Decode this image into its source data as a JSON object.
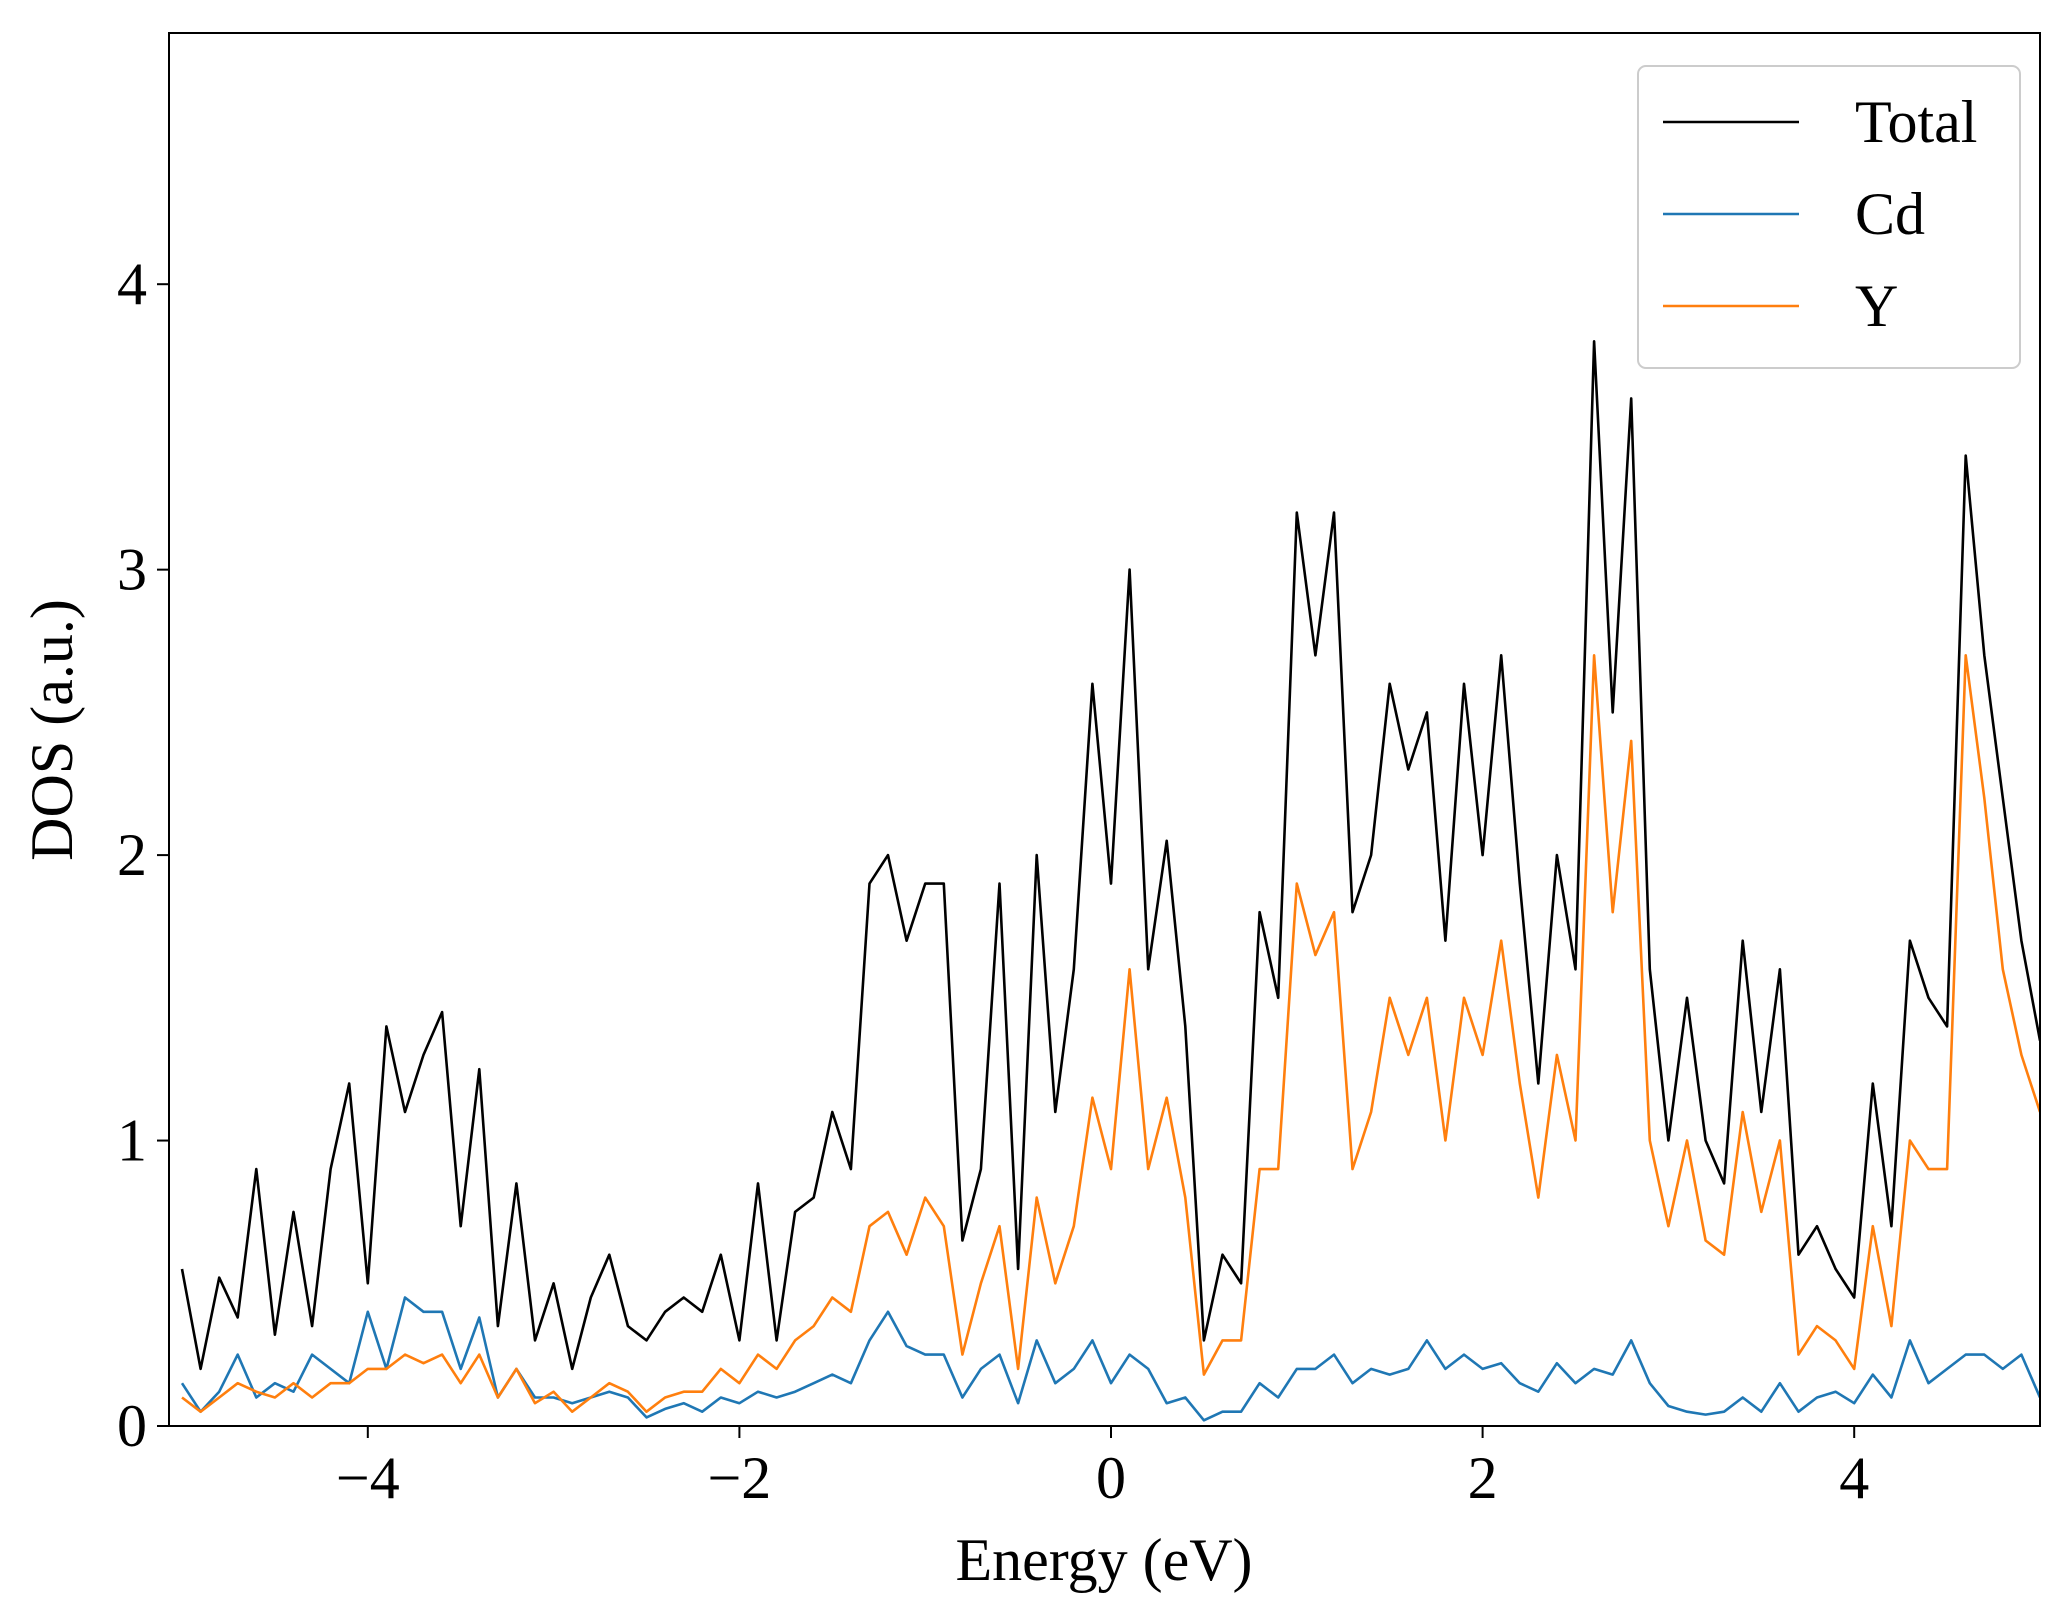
{
  "chart_data": {
    "type": "line",
    "xlabel": "Energy (eV)",
    "ylabel": "DOS (a.u.)",
    "xlim": [
      -5.07,
      5
    ],
    "ylim": [
      0,
      4.88
    ],
    "xticks": [
      {
        "value": -4,
        "label": "−4"
      },
      {
        "value": -2,
        "label": "−2"
      },
      0,
      2,
      4
    ],
    "yticks": [
      0,
      1,
      2,
      3,
      4
    ],
    "legend": "upper right",
    "x": [
      -5.0,
      -4.9,
      -4.8,
      -4.7,
      -4.6,
      -4.5,
      -4.4,
      -4.3,
      -4.2,
      -4.1,
      -4.0,
      -3.9,
      -3.8,
      -3.7,
      -3.6,
      -3.5,
      -3.4,
      -3.3,
      -3.2,
      -3.1,
      -3.0,
      -2.9,
      -2.8,
      -2.7,
      -2.6,
      -2.5,
      -2.4,
      -2.3,
      -2.2,
      -2.1,
      -2.0,
      -1.9,
      -1.8,
      -1.7,
      -1.6,
      -1.5,
      -1.4,
      -1.3,
      -1.2,
      -1.1,
      -1.0,
      -0.9,
      -0.8,
      -0.7,
      -0.6,
      -0.5,
      -0.4,
      -0.3,
      -0.2,
      -0.1,
      0.0,
      0.1,
      0.2,
      0.3,
      0.4,
      0.5,
      0.6,
      0.7,
      0.8,
      0.9,
      1.0,
      1.1,
      1.2,
      1.3,
      1.4,
      1.5,
      1.6,
      1.7,
      1.8,
      1.9,
      2.0,
      2.1,
      2.2,
      2.3,
      2.4,
      2.5,
      2.6,
      2.7,
      2.8,
      2.9,
      3.0,
      3.1,
      3.2,
      3.3,
      3.4,
      3.5,
      3.6,
      3.7,
      3.8,
      3.9,
      4.0,
      4.1,
      4.2,
      4.3,
      4.4,
      4.5,
      4.6,
      4.7,
      4.8,
      4.9,
      5.0
    ],
    "series": [
      {
        "name": "Total",
        "color": "#000000",
        "values": [
          0.55,
          0.2,
          0.52,
          0.38,
          0.9,
          0.32,
          0.75,
          0.35,
          0.9,
          1.2,
          0.5,
          1.4,
          1.1,
          1.3,
          1.45,
          0.7,
          1.25,
          0.35,
          0.85,
          0.3,
          0.5,
          0.2,
          0.45,
          0.6,
          0.35,
          0.3,
          0.4,
          0.45,
          0.4,
          0.6,
          0.3,
          0.85,
          0.3,
          0.75,
          0.8,
          1.1,
          0.9,
          1.9,
          2.0,
          1.7,
          1.9,
          1.9,
          0.65,
          0.9,
          1.9,
          0.55,
          2.0,
          1.1,
          1.6,
          2.6,
          1.9,
          3.0,
          1.6,
          2.05,
          1.4,
          0.3,
          0.6,
          0.5,
          1.8,
          1.5,
          3.2,
          2.7,
          3.2,
          1.8,
          2.0,
          2.6,
          2.3,
          2.5,
          1.7,
          2.6,
          2.0,
          2.7,
          1.9,
          1.2,
          2.0,
          1.6,
          3.8,
          2.5,
          3.6,
          1.6,
          1.0,
          1.5,
          1.0,
          0.85,
          1.7,
          1.1,
          1.6,
          0.6,
          0.7,
          0.55,
          0.45,
          1.2,
          0.7,
          1.7,
          1.5,
          1.4,
          3.4,
          2.7,
          2.2,
          1.7,
          1.35
        ]
      },
      {
        "name": "Cd",
        "color": "#1f77b4",
        "values": [
          0.15,
          0.05,
          0.12,
          0.25,
          0.1,
          0.15,
          0.12,
          0.25,
          0.2,
          0.15,
          0.4,
          0.2,
          0.45,
          0.4,
          0.4,
          0.2,
          0.38,
          0.1,
          0.2,
          0.1,
          0.1,
          0.08,
          0.1,
          0.12,
          0.1,
          0.03,
          0.06,
          0.08,
          0.05,
          0.1,
          0.08,
          0.12,
          0.1,
          0.12,
          0.15,
          0.18,
          0.15,
          0.3,
          0.4,
          0.28,
          0.25,
          0.25,
          0.1,
          0.2,
          0.25,
          0.08,
          0.3,
          0.15,
          0.2,
          0.3,
          0.15,
          0.25,
          0.2,
          0.08,
          0.1,
          0.02,
          0.05,
          0.05,
          0.15,
          0.1,
          0.2,
          0.2,
          0.25,
          0.15,
          0.2,
          0.18,
          0.2,
          0.3,
          0.2,
          0.25,
          0.2,
          0.22,
          0.15,
          0.12,
          0.22,
          0.15,
          0.2,
          0.18,
          0.3,
          0.15,
          0.07,
          0.05,
          0.04,
          0.05,
          0.1,
          0.05,
          0.15,
          0.05,
          0.1,
          0.12,
          0.08,
          0.18,
          0.1,
          0.3,
          0.15,
          0.2,
          0.25,
          0.25,
          0.2,
          0.25,
          0.1
        ]
      },
      {
        "name": "Y",
        "color": "#ff7f0e",
        "values": [
          0.1,
          0.05,
          0.1,
          0.15,
          0.12,
          0.1,
          0.15,
          0.1,
          0.15,
          0.15,
          0.2,
          0.2,
          0.25,
          0.22,
          0.25,
          0.15,
          0.25,
          0.1,
          0.2,
          0.08,
          0.12,
          0.05,
          0.1,
          0.15,
          0.12,
          0.05,
          0.1,
          0.12,
          0.12,
          0.2,
          0.15,
          0.25,
          0.2,
          0.3,
          0.35,
          0.45,
          0.4,
          0.7,
          0.75,
          0.6,
          0.8,
          0.7,
          0.25,
          0.5,
          0.7,
          0.2,
          0.8,
          0.5,
          0.7,
          1.15,
          0.9,
          1.6,
          0.9,
          1.15,
          0.8,
          0.18,
          0.3,
          0.3,
          0.9,
          0.9,
          1.9,
          1.65,
          1.8,
          0.9,
          1.1,
          1.5,
          1.3,
          1.5,
          1.0,
          1.5,
          1.3,
          1.7,
          1.2,
          0.8,
          1.3,
          1.0,
          2.7,
          1.8,
          2.4,
          1.0,
          0.7,
          1.0,
          0.65,
          0.6,
          1.1,
          0.75,
          1.0,
          0.25,
          0.35,
          0.3,
          0.2,
          0.7,
          0.35,
          1.0,
          0.9,
          0.9,
          2.7,
          2.2,
          1.6,
          1.3,
          1.1
        ]
      }
    ]
  }
}
